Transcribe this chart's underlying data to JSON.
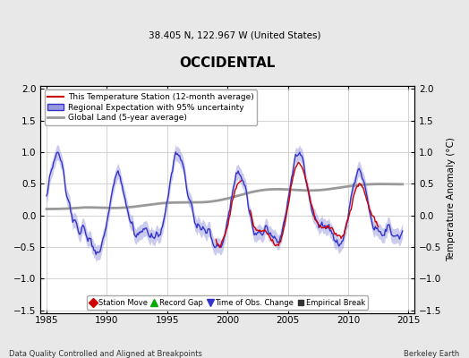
{
  "title": "OCCIDENTAL",
  "subtitle": "38.405 N, 122.967 W (United States)",
  "ylabel": "Temperature Anomaly (°C)",
  "xlabel_left": "Data Quality Controlled and Aligned at Breakpoints",
  "xlabel_right": "Berkeley Earth",
  "xlim": [
    1984.5,
    2015.5
  ],
  "ylim": [
    -1.55,
    2.05
  ],
  "yticks": [
    -1.5,
    -1.0,
    -0.5,
    0.0,
    0.5,
    1.0,
    1.5,
    2.0
  ],
  "xticks": [
    1985,
    1990,
    1995,
    2000,
    2005,
    2010,
    2015
  ],
  "bg_color": "#e8e8e8",
  "plot_bg_color": "#ffffff",
  "regional_color": "#3333cc",
  "regional_fill_color": "#9999dd",
  "station_color": "#cc0000",
  "global_color": "#999999",
  "grid_color": "#cccccc",
  "legend_line_label": "This Temperature Station (12-month average)",
  "legend_regional_label": "Regional Expectation with 95% uncertainty",
  "legend_global_label": "Global Land (5-year average)",
  "marker_items": [
    {
      "label": "Station Move",
      "marker": "D",
      "color": "#cc0000",
      "ms": 5
    },
    {
      "label": "Record Gap",
      "marker": "^",
      "color": "#00aa00",
      "ms": 6
    },
    {
      "label": "Time of Obs. Change",
      "marker": "v",
      "color": "#3333cc",
      "ms": 6
    },
    {
      "label": "Empirical Break",
      "marker": "s",
      "color": "#333333",
      "ms": 5
    }
  ]
}
